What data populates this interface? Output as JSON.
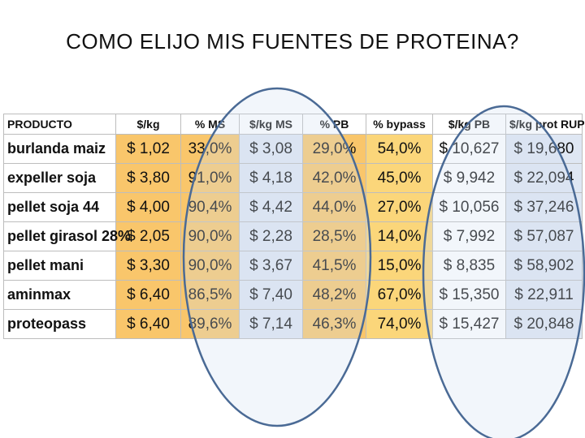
{
  "title": "COMO ELIJO MIS FUENTES DE PROTEINA?",
  "table": {
    "headers": [
      "PRODUCTO",
      "$/kg",
      "% MS",
      "$/kg MS",
      "% PB",
      "% bypass",
      "$/kg PB",
      "$/kg prot RUP"
    ],
    "rows": [
      [
        "burlanda maiz",
        "$ 1,02",
        "33,0%",
        "$ 3,08",
        "29,0%",
        "54,0%",
        "$ 10,627",
        "$ 19,680"
      ],
      [
        "expeller soja",
        "$ 3,80",
        "91,0%",
        "$ 4,18",
        "42,0%",
        "45,0%",
        "$ 9,942",
        "$ 22,094"
      ],
      [
        "pellet soja 44",
        "$ 4,00",
        "90,4%",
        "$ 4,42",
        "44,0%",
        "27,0%",
        "$ 10,056",
        "$ 37,246"
      ],
      [
        "pellet girasol 28%",
        "$ 2,05",
        "90,0%",
        "$ 2,28",
        "28,5%",
        "14,0%",
        "$ 7,992",
        "$ 57,087"
      ],
      [
        "pellet mani",
        "$ 3,30",
        "90,0%",
        "$ 3,67",
        "41,5%",
        "15,0%",
        "$ 8,835",
        "$ 58,902"
      ],
      [
        "aminmax",
        "$ 6,40",
        "86,5%",
        "$ 7,40",
        "48,2%",
        "67,0%",
        "$ 15,350",
        "$ 22,911"
      ],
      [
        "proteopass",
        "$ 6,40",
        "89,6%",
        "$ 7,14",
        "46,3%",
        "74,0%",
        "$ 15,427",
        "$ 20,848"
      ]
    ]
  },
  "colors": {
    "orange_cells": "#f9c66b",
    "yellow_cells": "#fbd67a",
    "blue_cells": "#dfe7f3",
    "ellipse_stroke": "#4a6a95"
  }
}
